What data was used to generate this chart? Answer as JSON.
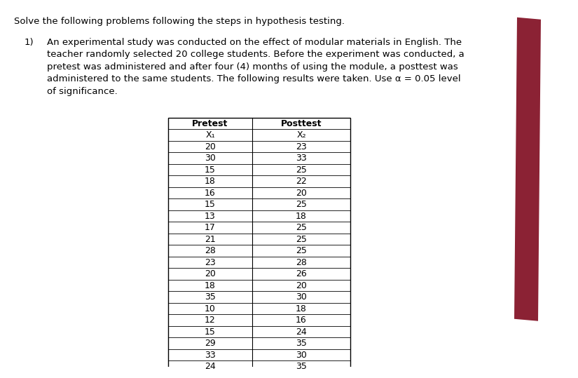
{
  "title_text": "Solve the following problems following the steps in hypothesis testing.",
  "problem_number": "1)",
  "problem_lines": [
    "An experimental study was conducted on the effect of modular materials in English. The",
    "teacher randomly selected 20 college students. Before the experiment was conducted, a",
    "pretest was administered and after four (4) months of using the module, a posttest was",
    "administered to the same students. The following results were taken. Use α = 0.05 level",
    "of significance."
  ],
  "col1_header": "Pretest",
  "col2_header": "Posttest",
  "col1_subheader": "X₁",
  "col2_subheader": "X₂",
  "pretest": [
    20,
    30,
    15,
    18,
    16,
    15,
    13,
    17,
    21,
    28,
    23,
    20,
    18,
    35,
    10,
    12,
    15,
    29,
    33,
    24
  ],
  "posttest": [
    23,
    33,
    25,
    22,
    20,
    25,
    18,
    25,
    25,
    25,
    28,
    26,
    20,
    30,
    18,
    16,
    24,
    35,
    30,
    35
  ],
  "bg_color": "#ffffff",
  "text_color": "#000000",
  "red_bar_color": "#8B2234",
  "title_fontsize": 9.5,
  "body_fontsize": 9.5,
  "table_fontsize": 9.0
}
